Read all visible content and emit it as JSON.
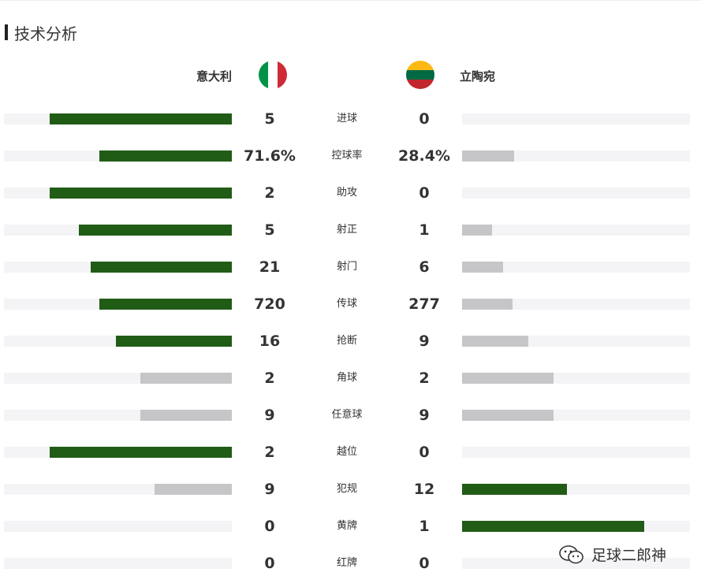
{
  "section": {
    "title": "技术分析"
  },
  "teams": {
    "home": {
      "name": "意大利",
      "flag_colors": [
        "#009246",
        "#ffffff",
        "#ce2b37"
      ]
    },
    "away": {
      "name": "立陶宛",
      "flag_colors": [
        "#fdb913",
        "#006a44",
        "#c1272d"
      ]
    }
  },
  "colors": {
    "win": "#215c16",
    "lose": "#c6c6c8",
    "track": "#f4f4f6"
  },
  "stats": [
    {
      "label": "进球",
      "home": "5",
      "away": "0",
      "home_fill": 0.8,
      "away_fill": 0.0,
      "home_state": "win",
      "away_state": "lose"
    },
    {
      "label": "控球率",
      "home": "71.6%",
      "away": "28.4%",
      "home_fill": 0.58,
      "away_fill": 0.23,
      "home_state": "win",
      "away_state": "lose"
    },
    {
      "label": "助攻",
      "home": "2",
      "away": "0",
      "home_fill": 0.8,
      "away_fill": 0.0,
      "home_state": "win",
      "away_state": "lose"
    },
    {
      "label": "射正",
      "home": "5",
      "away": "1",
      "home_fill": 0.67,
      "away_fill": 0.13,
      "home_state": "win",
      "away_state": "lose"
    },
    {
      "label": "射门",
      "home": "21",
      "away": "6",
      "home_fill": 0.62,
      "away_fill": 0.18,
      "home_state": "win",
      "away_state": "lose"
    },
    {
      "label": "传球",
      "home": "720",
      "away": "277",
      "home_fill": 0.58,
      "away_fill": 0.22,
      "home_state": "win",
      "away_state": "lose"
    },
    {
      "label": "抢断",
      "home": "16",
      "away": "9",
      "home_fill": 0.51,
      "away_fill": 0.29,
      "home_state": "win",
      "away_state": "lose"
    },
    {
      "label": "角球",
      "home": "2",
      "away": "2",
      "home_fill": 0.4,
      "away_fill": 0.4,
      "home_state": "lose",
      "away_state": "lose"
    },
    {
      "label": "任意球",
      "home": "9",
      "away": "9",
      "home_fill": 0.4,
      "away_fill": 0.4,
      "home_state": "lose",
      "away_state": "lose"
    },
    {
      "label": "越位",
      "home": "2",
      "away": "0",
      "home_fill": 0.8,
      "away_fill": 0.0,
      "home_state": "win",
      "away_state": "lose"
    },
    {
      "label": "犯规",
      "home": "9",
      "away": "12",
      "home_fill": 0.34,
      "away_fill": 0.46,
      "home_state": "lose",
      "away_state": "win"
    },
    {
      "label": "黄牌",
      "home": "0",
      "away": "1",
      "home_fill": 0.0,
      "away_fill": 0.8,
      "home_state": "lose",
      "away_state": "win"
    },
    {
      "label": "红牌",
      "home": "0",
      "away": "0",
      "home_fill": 0.0,
      "away_fill": 0.0,
      "home_state": "lose",
      "away_state": "lose"
    }
  ],
  "watermark": {
    "text": "足球二郎神",
    "icon": "wechat-icon"
  }
}
